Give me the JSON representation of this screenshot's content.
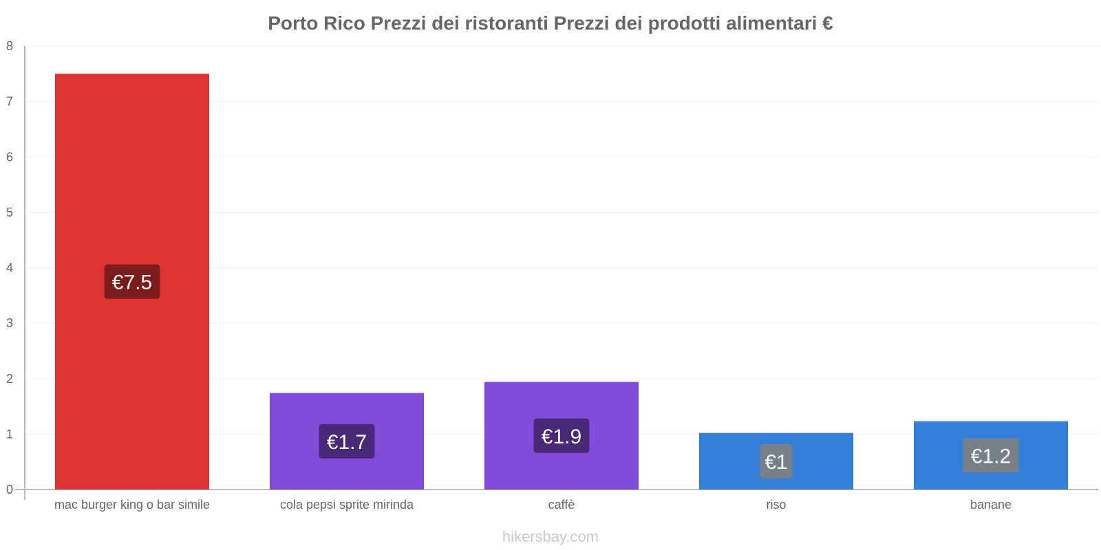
{
  "chart_data": {
    "type": "bar",
    "title": "Porto Rico Prezzi dei ristoranti Prezzi dei prodotti alimentari €",
    "categories": [
      "mac burger king o bar simile",
      "cola pepsi sprite mirinda",
      "caffè",
      "riso",
      "banane"
    ],
    "values": [
      7.5,
      1.74,
      1.94,
      1.02,
      1.23
    ],
    "data_labels": [
      "€7.5",
      "€1.7",
      "€1.9",
      "€1",
      "€1.2"
    ],
    "bar_colors": [
      "#e03434",
      "#824bd9",
      "#824bd9",
      "#3380db",
      "#3380db"
    ],
    "label_colors": [
      "#6f1a1a",
      "#412669",
      "#412669",
      "#1c4072",
      "#1c4072"
    ],
    "label_bg_colors": [
      "#6f1a1a",
      "#412669",
      "#412669",
      "#808080",
      "#808080"
    ],
    "ylim": [
      0,
      8
    ],
    "yticks": [
      0,
      1,
      2,
      3,
      4,
      5,
      6,
      7,
      8
    ],
    "xlabel": "",
    "ylabel": "",
    "grid": true
  },
  "footer": {
    "source": "hikersbay.com"
  }
}
